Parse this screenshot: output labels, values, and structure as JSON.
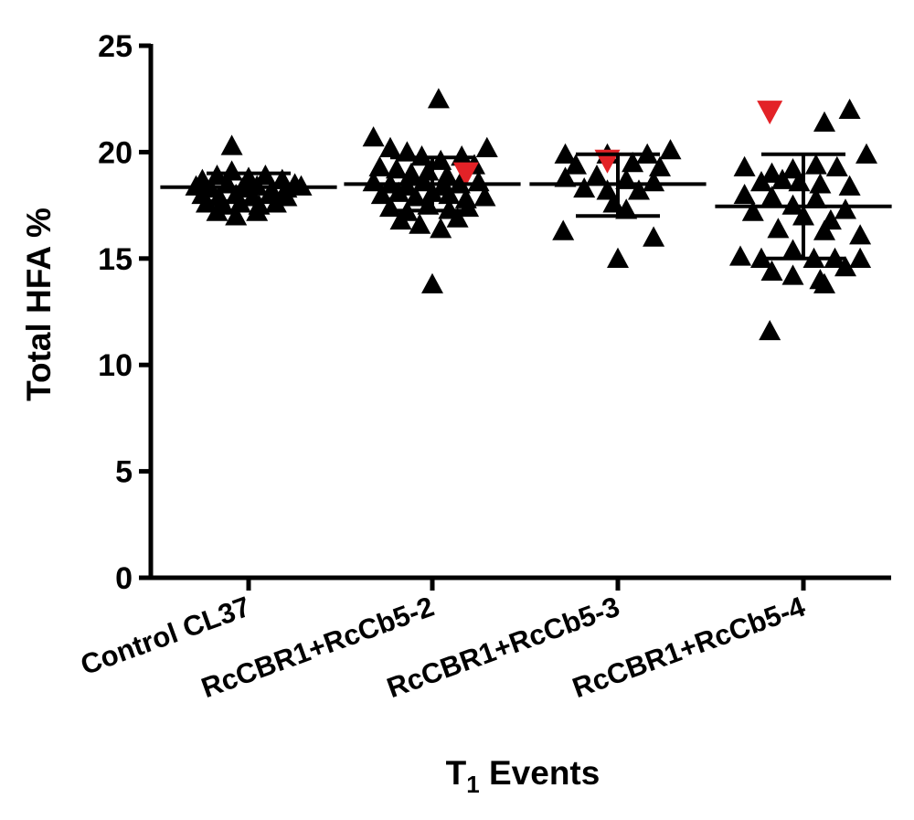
{
  "chart_data": {
    "type": "scatter",
    "ylabel": "Total HFA %",
    "xlabel_main": "T",
    "xlabel_sub": "1",
    "xlabel_rest": " Events",
    "ylim": [
      0,
      25
    ],
    "yticks": [
      0,
      5,
      10,
      15,
      20,
      25
    ],
    "categories": [
      "Control CL37",
      "RcCBR1+RcCb5-2",
      "RcCBR1+RcCb5-3",
      "RcCBR1+RcCb5-4"
    ],
    "marker_color": "#000000",
    "highlight_color": "#e32227",
    "groups": [
      {
        "category": "Control CL37",
        "mean": 18.35,
        "sd_low": 17.7,
        "sd_high": 19.0,
        "points": [
          {
            "o": -0.08,
            "v": 20.3
          },
          {
            "o": -0.22,
            "v": 18.7
          },
          {
            "o": -0.15,
            "v": 18.9
          },
          {
            "o": -0.08,
            "v": 19.1
          },
          {
            "o": 0.0,
            "v": 18.8
          },
          {
            "o": 0.08,
            "v": 18.9
          },
          {
            "o": 0.16,
            "v": 18.7
          },
          {
            "o": 0.22,
            "v": 18.5
          },
          {
            "o": -0.25,
            "v": 18.4
          },
          {
            "o": -0.18,
            "v": 18.3
          },
          {
            "o": -0.1,
            "v": 18.5
          },
          {
            "o": -0.03,
            "v": 18.3
          },
          {
            "o": 0.04,
            "v": 18.4
          },
          {
            "o": 0.11,
            "v": 18.2
          },
          {
            "o": 0.18,
            "v": 18.3
          },
          {
            "o": 0.25,
            "v": 18.4
          },
          {
            "o": -0.22,
            "v": 18.0
          },
          {
            "o": -0.14,
            "v": 17.9
          },
          {
            "o": -0.06,
            "v": 18.0
          },
          {
            "o": 0.02,
            "v": 17.9
          },
          {
            "o": 0.1,
            "v": 18.0
          },
          {
            "o": 0.18,
            "v": 17.9
          },
          {
            "o": -0.2,
            "v": 17.6
          },
          {
            "o": -0.12,
            "v": 17.5
          },
          {
            "o": -0.04,
            "v": 17.6
          },
          {
            "o": 0.05,
            "v": 17.5
          },
          {
            "o": 0.13,
            "v": 17.6
          },
          {
            "o": -0.15,
            "v": 17.2
          },
          {
            "o": -0.06,
            "v": 17.0
          },
          {
            "o": 0.04,
            "v": 17.2
          }
        ]
      },
      {
        "category": "RcCBR1+RcCb5-2",
        "mean": 18.5,
        "sd_low": 17.25,
        "sd_high": 19.75,
        "points": [
          {
            "o": 0.03,
            "v": 22.5
          },
          {
            "o": -0.28,
            "v": 20.7
          },
          {
            "o": -0.2,
            "v": 20.2
          },
          {
            "o": -0.12,
            "v": 20.0
          },
          {
            "o": 0.26,
            "v": 20.2
          },
          {
            "o": -0.05,
            "v": 19.8
          },
          {
            "o": 0.04,
            "v": 19.6
          },
          {
            "o": 0.14,
            "v": 19.8
          },
          {
            "o": 0.2,
            "v": 19.4
          },
          {
            "o": -0.25,
            "v": 19.3
          },
          {
            "o": -0.17,
            "v": 19.2
          },
          {
            "o": -0.1,
            "v": 19.0
          },
          {
            "o": -0.02,
            "v": 19.1
          },
          {
            "o": 0.07,
            "v": 18.9
          },
          {
            "o": -0.28,
            "v": 18.6
          },
          {
            "o": -0.2,
            "v": 18.5
          },
          {
            "o": -0.12,
            "v": 18.4
          },
          {
            "o": -0.04,
            "v": 18.6
          },
          {
            "o": 0.05,
            "v": 18.4
          },
          {
            "o": 0.13,
            "v": 18.5
          },
          {
            "o": 0.22,
            "v": 18.6
          },
          {
            "o": -0.24,
            "v": 18.0
          },
          {
            "o": -0.16,
            "v": 18.1
          },
          {
            "o": -0.08,
            "v": 17.9
          },
          {
            "o": 0.0,
            "v": 18.1
          },
          {
            "o": 0.08,
            "v": 18.0
          },
          {
            "o": 0.16,
            "v": 17.8
          },
          {
            "o": 0.25,
            "v": 17.9
          },
          {
            "o": -0.2,
            "v": 17.4
          },
          {
            "o": -0.12,
            "v": 17.2
          },
          {
            "o": -0.02,
            "v": 17.5
          },
          {
            "o": 0.08,
            "v": 17.3
          },
          {
            "o": 0.17,
            "v": 17.4
          },
          {
            "o": -0.15,
            "v": 16.8
          },
          {
            "o": -0.06,
            "v": 16.6
          },
          {
            "o": 0.04,
            "v": 16.4
          },
          {
            "o": 0.12,
            "v": 16.9
          },
          {
            "o": 0.0,
            "v": 13.8
          }
        ],
        "highlight": [
          {
            "o": 0.16,
            "v": 19.0
          }
        ]
      },
      {
        "category": "RcCBR1+RcCb5-3",
        "mean": 18.5,
        "sd_low": 17.0,
        "sd_high": 19.9,
        "points": [
          {
            "o": -0.25,
            "v": 19.9
          },
          {
            "o": -0.05,
            "v": 19.9
          },
          {
            "o": 0.14,
            "v": 19.9
          },
          {
            "o": 0.25,
            "v": 20.1
          },
          {
            "o": -0.2,
            "v": 19.4
          },
          {
            "o": 0.07,
            "v": 19.5
          },
          {
            "o": 0.2,
            "v": 19.3
          },
          {
            "o": -0.25,
            "v": 18.8
          },
          {
            "o": -0.1,
            "v": 18.9
          },
          {
            "o": 0.04,
            "v": 18.7
          },
          {
            "o": 0.17,
            "v": 18.6
          },
          {
            "o": -0.16,
            "v": 18.3
          },
          {
            "o": -0.05,
            "v": 18.2
          },
          {
            "o": 0.1,
            "v": 18.2
          },
          {
            "o": -0.02,
            "v": 17.6
          },
          {
            "o": 0.04,
            "v": 17.3
          },
          {
            "o": -0.26,
            "v": 16.3
          },
          {
            "o": 0.17,
            "v": 16.0
          },
          {
            "o": 0.0,
            "v": 15.0
          }
        ],
        "highlight": [
          {
            "o": -0.05,
            "v": 19.6
          }
        ]
      },
      {
        "category": "RcCBR1+RcCb5-4",
        "mean": 17.45,
        "sd_low": 15.0,
        "sd_high": 19.9,
        "points": [
          {
            "o": 0.1,
            "v": 21.4
          },
          {
            "o": 0.22,
            "v": 22.0
          },
          {
            "o": -0.28,
            "v": 19.3
          },
          {
            "o": -0.15,
            "v": 19.0
          },
          {
            "o": -0.05,
            "v": 19.2
          },
          {
            "o": 0.06,
            "v": 19.4
          },
          {
            "o": 0.16,
            "v": 19.3
          },
          {
            "o": 0.3,
            "v": 19.9
          },
          {
            "o": -0.2,
            "v": 18.6
          },
          {
            "o": -0.1,
            "v": 18.7
          },
          {
            "o": -0.02,
            "v": 18.6
          },
          {
            "o": 0.08,
            "v": 18.5
          },
          {
            "o": 0.22,
            "v": 18.4
          },
          {
            "o": -0.28,
            "v": 18.0
          },
          {
            "o": -0.15,
            "v": 17.9
          },
          {
            "o": -0.05,
            "v": 17.5
          },
          {
            "o": 0.06,
            "v": 17.8
          },
          {
            "o": 0.2,
            "v": 17.3
          },
          {
            "o": -0.24,
            "v": 17.2
          },
          {
            "o": 0.0,
            "v": 17.0
          },
          {
            "o": 0.13,
            "v": 16.8
          },
          {
            "o": -0.12,
            "v": 16.4
          },
          {
            "o": 0.1,
            "v": 16.3
          },
          {
            "o": 0.27,
            "v": 16.1
          },
          {
            "o": -0.3,
            "v": 15.1
          },
          {
            "o": -0.2,
            "v": 15.0
          },
          {
            "o": -0.05,
            "v": 15.4
          },
          {
            "o": 0.05,
            "v": 15.0
          },
          {
            "o": 0.15,
            "v": 15.0
          },
          {
            "o": 0.27,
            "v": 15.0
          },
          {
            "o": -0.15,
            "v": 14.4
          },
          {
            "o": -0.05,
            "v": 14.2
          },
          {
            "o": 0.08,
            "v": 14.0
          },
          {
            "o": 0.2,
            "v": 14.6
          },
          {
            "o": 0.1,
            "v": 13.8
          },
          {
            "o": -0.16,
            "v": 11.6
          }
        ],
        "highlight": [
          {
            "o": -0.16,
            "v": 21.9
          }
        ]
      }
    ]
  }
}
